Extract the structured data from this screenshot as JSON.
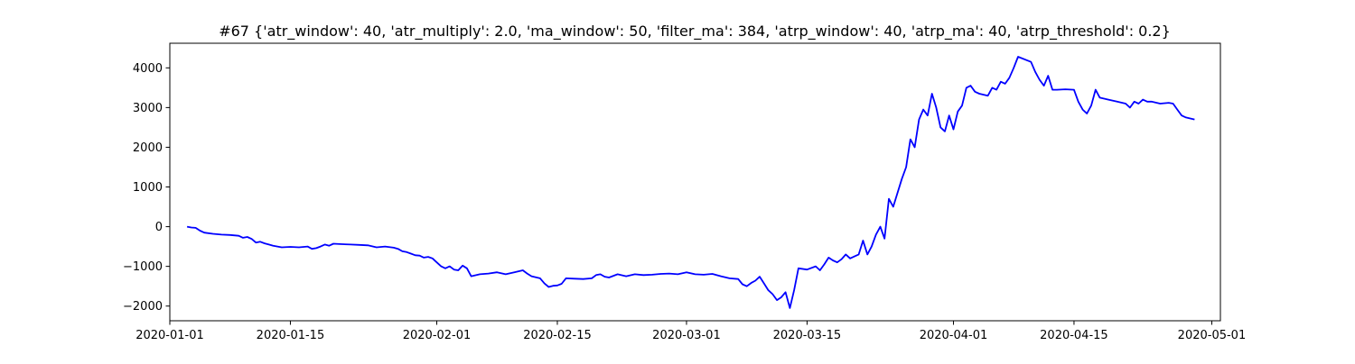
{
  "chart_data": {
    "type": "line",
    "title": "#67 {'atr_window': 40, 'atr_multiply': 2.0, 'ma_window': 50, 'filter_ma': 384, 'atrp_window': 40, 'atrp_ma': 40, 'atrp_threshold': 0.2}",
    "xlabel": "",
    "ylabel": "",
    "grid": false,
    "x_is_date": true,
    "xlim": [
      "2020-01-01",
      "2020-05-02"
    ],
    "ylim": [
      -2370,
      4620
    ],
    "x_ticks": [
      "2020-01-01",
      "2020-01-15",
      "2020-02-01",
      "2020-02-15",
      "2020-03-01",
      "2020-03-15",
      "2020-04-01",
      "2020-04-15",
      "2020-05-01"
    ],
    "y_ticks": [
      -2000,
      -1000,
      0,
      1000,
      2000,
      3000,
      4000
    ],
    "y_tick_labels": [
      "−2000",
      "−1000",
      "0",
      "1000",
      "2000",
      "3000",
      "4000"
    ],
    "series": [
      {
        "color": "#0000ff",
        "points": [
          [
            "2020-01-03",
            0
          ],
          [
            "2020-01-03T12:00",
            -20
          ],
          [
            "2020-01-04",
            -30
          ],
          [
            "2020-01-04T12:00",
            -100
          ],
          [
            "2020-01-05",
            -150
          ],
          [
            "2020-01-06",
            -180
          ],
          [
            "2020-01-07",
            -200
          ],
          [
            "2020-01-08",
            -210
          ],
          [
            "2020-01-09",
            -230
          ],
          [
            "2020-01-09T12:00",
            -280
          ],
          [
            "2020-01-10",
            -260
          ],
          [
            "2020-01-10T12:00",
            -310
          ],
          [
            "2020-01-11",
            -400
          ],
          [
            "2020-01-11T12:00",
            -380
          ],
          [
            "2020-01-12",
            -420
          ],
          [
            "2020-01-12T12:00",
            -450
          ],
          [
            "2020-01-13",
            -480
          ],
          [
            "2020-01-14",
            -520
          ],
          [
            "2020-01-15",
            -510
          ],
          [
            "2020-01-16",
            -520
          ],
          [
            "2020-01-17",
            -500
          ],
          [
            "2020-01-17T12:00",
            -560
          ],
          [
            "2020-01-18",
            -540
          ],
          [
            "2020-01-18T12:00",
            -500
          ],
          [
            "2020-01-19",
            -450
          ],
          [
            "2020-01-19T12:00",
            -480
          ],
          [
            "2020-01-20",
            -430
          ],
          [
            "2020-01-21",
            -440
          ],
          [
            "2020-01-22",
            -450
          ],
          [
            "2020-01-23",
            -460
          ],
          [
            "2020-01-24",
            -470
          ],
          [
            "2020-01-25",
            -520
          ],
          [
            "2020-01-26",
            -500
          ],
          [
            "2020-01-27",
            -530
          ],
          [
            "2020-01-27T12:00",
            -560
          ],
          [
            "2020-01-28",
            -620
          ],
          [
            "2020-01-28T12:00",
            -640
          ],
          [
            "2020-01-29",
            -680
          ],
          [
            "2020-01-29T12:00",
            -720
          ],
          [
            "2020-01-30",
            -730
          ],
          [
            "2020-01-30T12:00",
            -780
          ],
          [
            "2020-01-31",
            -760
          ],
          [
            "2020-01-31T12:00",
            -800
          ],
          [
            "2020-02-01",
            -900
          ],
          [
            "2020-02-01T12:00",
            -1000
          ],
          [
            "2020-02-02",
            -1050
          ],
          [
            "2020-02-02T12:00",
            -1000
          ],
          [
            "2020-02-03",
            -1080
          ],
          [
            "2020-02-03T12:00",
            -1100
          ],
          [
            "2020-02-04",
            -980
          ],
          [
            "2020-02-04T12:00",
            -1050
          ],
          [
            "2020-02-05",
            -1250
          ],
          [
            "2020-02-06",
            -1200
          ],
          [
            "2020-02-07",
            -1180
          ],
          [
            "2020-02-08",
            -1150
          ],
          [
            "2020-02-09",
            -1200
          ],
          [
            "2020-02-10",
            -1150
          ],
          [
            "2020-02-11",
            -1100
          ],
          [
            "2020-02-11T12:00",
            -1180
          ],
          [
            "2020-02-12",
            -1250
          ],
          [
            "2020-02-13",
            -1300
          ],
          [
            "2020-02-13T12:00",
            -1430
          ],
          [
            "2020-02-14",
            -1520
          ],
          [
            "2020-02-14T12:00",
            -1490
          ],
          [
            "2020-02-15",
            -1480
          ],
          [
            "2020-02-15T12:00",
            -1440
          ],
          [
            "2020-02-16",
            -1300
          ],
          [
            "2020-02-17",
            -1310
          ],
          [
            "2020-02-18",
            -1320
          ],
          [
            "2020-02-19",
            -1300
          ],
          [
            "2020-02-19T12:00",
            -1220
          ],
          [
            "2020-02-20",
            -1200
          ],
          [
            "2020-02-20T12:00",
            -1260
          ],
          [
            "2020-02-21",
            -1280
          ],
          [
            "2020-02-22",
            -1200
          ],
          [
            "2020-02-23",
            -1250
          ],
          [
            "2020-02-24",
            -1200
          ],
          [
            "2020-02-25",
            -1220
          ],
          [
            "2020-02-26",
            -1210
          ],
          [
            "2020-02-27",
            -1190
          ],
          [
            "2020-02-28",
            -1180
          ],
          [
            "2020-02-29",
            -1200
          ],
          [
            "2020-03-01",
            -1150
          ],
          [
            "2020-03-02",
            -1200
          ],
          [
            "2020-03-03",
            -1210
          ],
          [
            "2020-03-04",
            -1190
          ],
          [
            "2020-03-05",
            -1250
          ],
          [
            "2020-03-06",
            -1300
          ],
          [
            "2020-03-07",
            -1320
          ],
          [
            "2020-03-07T12:00",
            -1450
          ],
          [
            "2020-03-08",
            -1500
          ],
          [
            "2020-03-08T12:00",
            -1420
          ],
          [
            "2020-03-09",
            -1360
          ],
          [
            "2020-03-09T12:00",
            -1260
          ],
          [
            "2020-03-10",
            -1430
          ],
          [
            "2020-03-10T12:00",
            -1600
          ],
          [
            "2020-03-11",
            -1700
          ],
          [
            "2020-03-11T12:00",
            -1850
          ],
          [
            "2020-03-12",
            -1780
          ],
          [
            "2020-03-12T12:00",
            -1650
          ],
          [
            "2020-03-13",
            -2050
          ],
          [
            "2020-03-13T12:00",
            -1600
          ],
          [
            "2020-03-14",
            -1050
          ],
          [
            "2020-03-15",
            -1080
          ],
          [
            "2020-03-16",
            -1000
          ],
          [
            "2020-03-16T12:00",
            -1100
          ],
          [
            "2020-03-17",
            -950
          ],
          [
            "2020-03-17T12:00",
            -780
          ],
          [
            "2020-03-18",
            -850
          ],
          [
            "2020-03-18T12:00",
            -900
          ],
          [
            "2020-03-19",
            -820
          ],
          [
            "2020-03-19T12:00",
            -700
          ],
          [
            "2020-03-20",
            -800
          ],
          [
            "2020-03-20T12:00",
            -750
          ],
          [
            "2020-03-21",
            -700
          ],
          [
            "2020-03-21T12:00",
            -350
          ],
          [
            "2020-03-22",
            -700
          ],
          [
            "2020-03-22T12:00",
            -500
          ],
          [
            "2020-03-23",
            -200
          ],
          [
            "2020-03-23T12:00",
            0
          ],
          [
            "2020-03-24",
            -300
          ],
          [
            "2020-03-24T12:00",
            700
          ],
          [
            "2020-03-25",
            500
          ],
          [
            "2020-03-26",
            1200
          ],
          [
            "2020-03-26T12:00",
            1500
          ],
          [
            "2020-03-27",
            2200
          ],
          [
            "2020-03-27T12:00",
            2000
          ],
          [
            "2020-03-28",
            2700
          ],
          [
            "2020-03-28T12:00",
            2950
          ],
          [
            "2020-03-29",
            2800
          ],
          [
            "2020-03-29T12:00",
            3350
          ],
          [
            "2020-03-30",
            3000
          ],
          [
            "2020-03-30T12:00",
            2500
          ],
          [
            "2020-03-31",
            2400
          ],
          [
            "2020-03-31T12:00",
            2800
          ],
          [
            "2020-04-01",
            2450
          ],
          [
            "2020-04-01T12:00",
            2900
          ],
          [
            "2020-04-02",
            3050
          ],
          [
            "2020-04-02T12:00",
            3500
          ],
          [
            "2020-04-03",
            3550
          ],
          [
            "2020-04-03T12:00",
            3400
          ],
          [
            "2020-04-04",
            3350
          ],
          [
            "2020-04-05",
            3300
          ],
          [
            "2020-04-05T12:00",
            3500
          ],
          [
            "2020-04-06",
            3450
          ],
          [
            "2020-04-06T12:00",
            3650
          ],
          [
            "2020-04-07",
            3600
          ],
          [
            "2020-04-07T12:00",
            3750
          ],
          [
            "2020-04-08",
            4000
          ],
          [
            "2020-04-08T12:00",
            4280
          ],
          [
            "2020-04-10",
            4150
          ],
          [
            "2020-04-10T12:00",
            3900
          ],
          [
            "2020-04-11",
            3700
          ],
          [
            "2020-04-11T12:00",
            3550
          ],
          [
            "2020-04-12",
            3800
          ],
          [
            "2020-04-12T12:00",
            3450
          ],
          [
            "2020-04-13",
            3450
          ],
          [
            "2020-04-14",
            3460
          ],
          [
            "2020-04-15",
            3450
          ],
          [
            "2020-04-15T12:00",
            3150
          ],
          [
            "2020-04-16",
            2950
          ],
          [
            "2020-04-16T12:00",
            2850
          ],
          [
            "2020-04-17",
            3050
          ],
          [
            "2020-04-17T12:00",
            3450
          ],
          [
            "2020-04-18",
            3250
          ],
          [
            "2020-04-19",
            3200
          ],
          [
            "2020-04-20",
            3150
          ],
          [
            "2020-04-21",
            3100
          ],
          [
            "2020-04-21T12:00",
            3000
          ],
          [
            "2020-04-22",
            3150
          ],
          [
            "2020-04-22T12:00",
            3100
          ],
          [
            "2020-04-23",
            3200
          ],
          [
            "2020-04-23T12:00",
            3150
          ],
          [
            "2020-04-24",
            3150
          ],
          [
            "2020-04-25",
            3100
          ],
          [
            "2020-04-26",
            3120
          ],
          [
            "2020-04-26T12:00",
            3100
          ],
          [
            "2020-04-27",
            2950
          ],
          [
            "2020-04-27T12:00",
            2800
          ],
          [
            "2020-04-28",
            2750
          ],
          [
            "2020-04-29",
            2700
          ]
        ]
      }
    ]
  }
}
